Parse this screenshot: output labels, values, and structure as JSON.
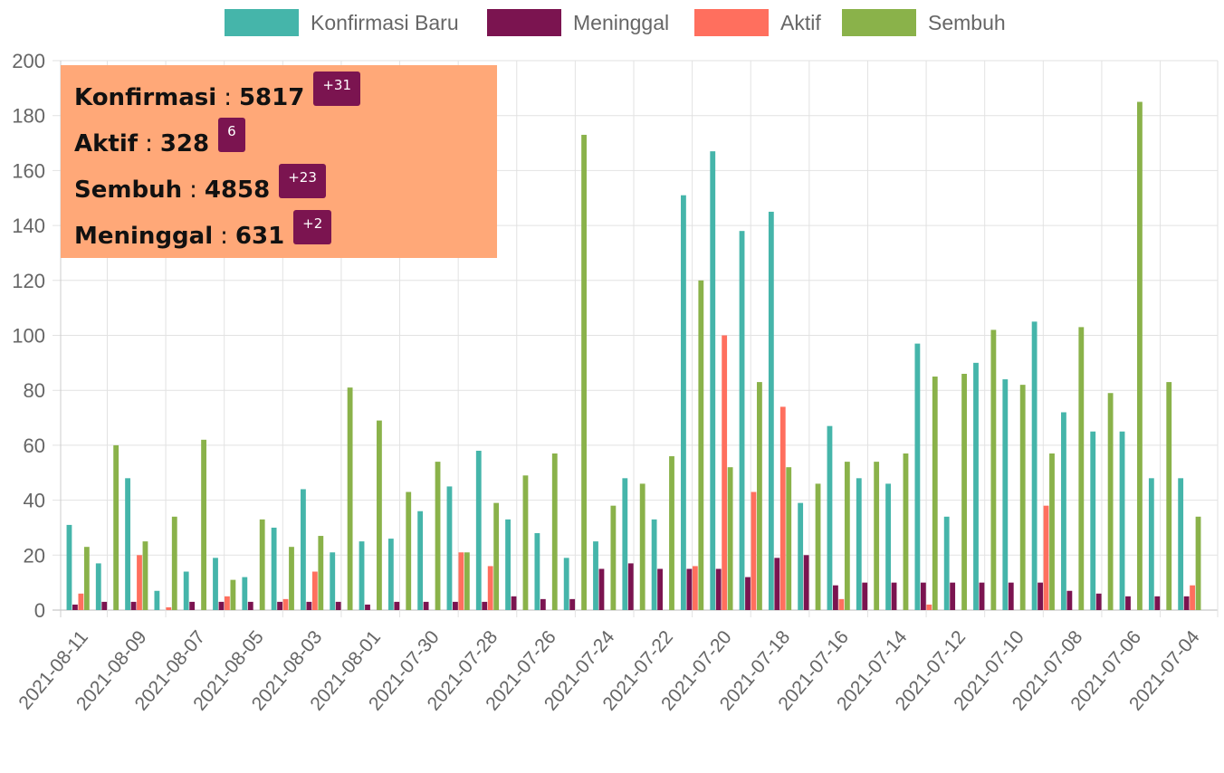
{
  "chart_data": {
    "type": "bar",
    "categories": [
      "2021-08-11",
      null,
      "2021-08-09",
      null,
      "2021-08-07",
      null,
      "2021-08-05",
      null,
      "2021-08-03",
      null,
      "2021-08-01",
      null,
      "2021-07-30",
      null,
      "2021-07-28",
      null,
      "2021-07-26",
      null,
      "2021-07-24",
      null,
      "2021-07-22",
      null,
      "2021-07-20",
      null,
      "2021-07-18",
      null,
      "2021-07-16",
      null,
      "2021-07-14",
      null,
      "2021-07-12",
      null,
      "2021-07-10",
      null,
      "2021-07-08",
      null,
      "2021-07-06",
      null,
      "2021-07-04"
    ],
    "series": [
      {
        "name": "Konfirmasi Baru",
        "color": "#45b5aa",
        "values": [
          31,
          17,
          48,
          7,
          14,
          19,
          12,
          30,
          44,
          21,
          25,
          26,
          36,
          45,
          58,
          33,
          28,
          19,
          25,
          48,
          33,
          151,
          167,
          138,
          145,
          39,
          67,
          48,
          46,
          97,
          34,
          90,
          84,
          105,
          72,
          65,
          65,
          48,
          48
        ]
      },
      {
        "name": "Meninggal",
        "color": "#7b1450",
        "values": [
          2,
          3,
          3,
          0,
          3,
          3,
          3,
          3,
          3,
          3,
          2,
          3,
          3,
          3,
          3,
          5,
          4,
          4,
          15,
          17,
          15,
          15,
          15,
          12,
          19,
          20,
          9,
          10,
          10,
          10,
          10,
          10,
          10,
          10,
          7,
          6,
          5,
          5,
          5
        ]
      },
      {
        "name": "Aktif",
        "color": "#ff6f5e",
        "values": [
          6,
          0,
          20,
          1,
          0,
          5,
          0,
          4,
          14,
          0,
          0,
          0,
          0,
          21,
          16,
          0,
          0,
          0,
          0,
          0,
          0,
          16,
          100,
          43,
          74,
          0,
          4,
          0,
          0,
          2,
          0,
          0,
          0,
          38,
          0,
          0,
          0,
          0,
          9
        ]
      },
      {
        "name": "Sembuh",
        "color": "#8ab24a",
        "values": [
          23,
          60,
          25,
          34,
          62,
          11,
          33,
          23,
          27,
          81,
          69,
          43,
          54,
          21,
          39,
          49,
          57,
          173,
          38,
          46,
          56,
          120,
          52,
          83,
          52,
          46,
          54,
          54,
          57,
          85,
          86,
          102,
          82,
          57,
          103,
          79,
          185,
          83,
          34
        ]
      }
    ],
    "ylim": [
      0,
      200
    ],
    "yticks": [
      0,
      20,
      40,
      60,
      80,
      100,
      120,
      140,
      160,
      180,
      200
    ],
    "grid": true,
    "legend": "top"
  },
  "summary": {
    "separator": ":",
    "items": [
      {
        "label": "Konfirmasi",
        "value": 5817,
        "change": "+31"
      },
      {
        "label": "Aktif",
        "value": 328,
        "change": "6"
      },
      {
        "label": "Sembuh",
        "value": 4858,
        "change": "+23"
      },
      {
        "label": "Meninggal",
        "value": 631,
        "change": "+2"
      }
    ]
  }
}
